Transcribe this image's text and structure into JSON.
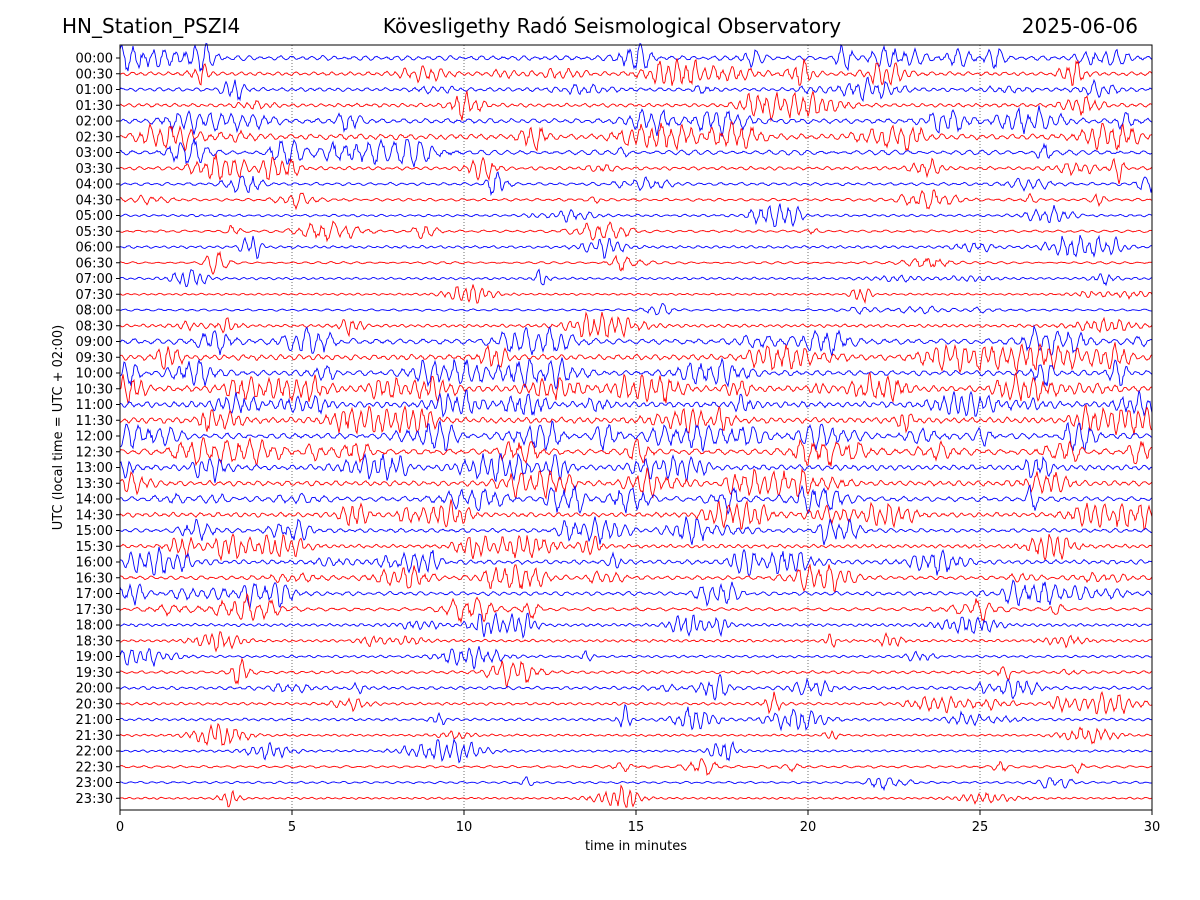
{
  "header": {
    "station": "HN_Station_PSZI4",
    "title": "Kövesligethy Radó Seismological Observatory",
    "date": "2025-06-06"
  },
  "chart_data": {
    "type": "line",
    "subtype": "helicorder",
    "xlabel": "time in minutes",
    "ylabel": "UTC (local time = UTC + 02:00)",
    "xlim": [
      0,
      30
    ],
    "x_ticks": [
      0,
      5,
      10,
      15,
      20,
      25,
      30
    ],
    "grid": "vertical dotted lines at x ticks",
    "legend": "none",
    "trace_colors": [
      "#0000ff",
      "#ff0000"
    ],
    "row_labels": [
      "00:00",
      "00:30",
      "01:00",
      "01:30",
      "02:00",
      "02:30",
      "03:00",
      "03:30",
      "04:00",
      "04:30",
      "05:00",
      "05:30",
      "06:00",
      "06:30",
      "07:00",
      "07:30",
      "08:00",
      "08:30",
      "09:00",
      "09:30",
      "10:00",
      "10:30",
      "11:00",
      "11:30",
      "12:00",
      "12:30",
      "13:00",
      "13:30",
      "14:00",
      "14:30",
      "15:00",
      "15:30",
      "16:00",
      "16:30",
      "17:00",
      "17:30",
      "18:00",
      "18:30",
      "19:00",
      "19:30",
      "20:00",
      "20:30",
      "21:00",
      "21:30",
      "22:00",
      "22:30",
      "23:00",
      "23:30"
    ],
    "activity_level": [
      0.7,
      0.55,
      0.5,
      0.5,
      0.75,
      0.9,
      0.7,
      0.45,
      0.35,
      0.3,
      0.25,
      0.25,
      0.3,
      0.2,
      0.25,
      0.15,
      0.2,
      0.4,
      0.85,
      0.9,
      0.85,
      0.95,
      0.95,
      0.95,
      0.9,
      0.95,
      0.85,
      0.8,
      0.75,
      0.7,
      0.55,
      0.5,
      0.65,
      0.55,
      0.55,
      0.4,
      0.35,
      0.3,
      0.25,
      0.35,
      0.4,
      0.3,
      0.3,
      0.2,
      0.2,
      0.25,
      0.2,
      0.15
    ]
  }
}
